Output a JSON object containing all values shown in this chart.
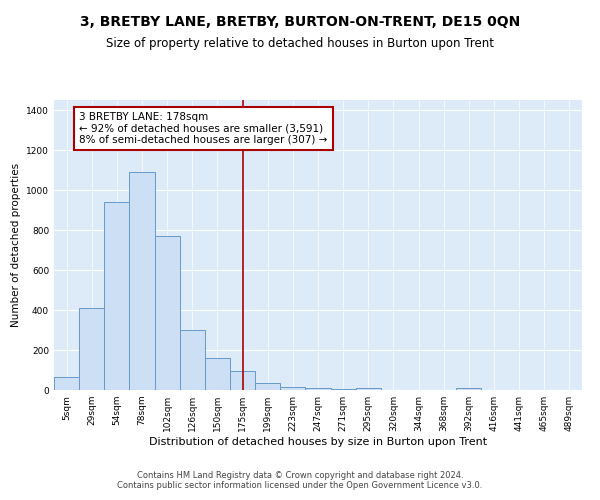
{
  "title": "3, BRETBY LANE, BRETBY, BURTON-ON-TRENT, DE15 0QN",
  "subtitle": "Size of property relative to detached houses in Burton upon Trent",
  "xlabel": "Distribution of detached houses by size in Burton upon Trent",
  "ylabel": "Number of detached properties",
  "categories": [
    "5sqm",
    "29sqm",
    "54sqm",
    "78sqm",
    "102sqm",
    "126sqm",
    "150sqm",
    "175sqm",
    "199sqm",
    "223sqm",
    "247sqm",
    "271sqm",
    "295sqm",
    "320sqm",
    "344sqm",
    "368sqm",
    "392sqm",
    "416sqm",
    "441sqm",
    "465sqm",
    "489sqm"
  ],
  "values": [
    65,
    410,
    940,
    1090,
    770,
    300,
    160,
    95,
    37,
    15,
    10,
    3,
    8,
    0,
    0,
    0,
    10,
    0,
    0,
    0,
    0
  ],
  "bar_color": "#ccdff5",
  "bar_edge_color": "#6699cc",
  "vline_x": 7.0,
  "vline_color": "#aa0000",
  "annotation_text": "3 BRETBY LANE: 178sqm\n← 92% of detached houses are smaller (3,591)\n8% of semi-detached houses are larger (307) →",
  "annotation_box_color": "#ffffff",
  "annotation_box_edge": "#aa0000",
  "ylim": [
    0,
    1450
  ],
  "yticks": [
    0,
    200,
    400,
    600,
    800,
    1000,
    1200,
    1400
  ],
  "background_color": "#ddeaf8",
  "footer_line1": "Contains HM Land Registry data © Crown copyright and database right 2024.",
  "footer_line2": "Contains public sector information licensed under the Open Government Licence v3.0.",
  "title_fontsize": 10,
  "subtitle_fontsize": 8.5,
  "xlabel_fontsize": 8,
  "ylabel_fontsize": 7.5,
  "tick_fontsize": 6.5,
  "annotation_fontsize": 7.5,
  "footer_fontsize": 6
}
